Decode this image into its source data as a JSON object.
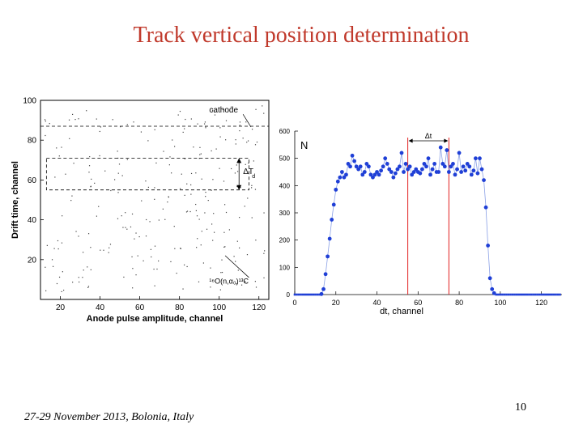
{
  "slide": {
    "title": "Track vertical position determination",
    "footer": "27-29 November 2013, Bolonia, Italy",
    "page_number": "10"
  },
  "colors": {
    "title": "#c0392b",
    "marker": "#1f3fd6",
    "connector": "#8aa0e6",
    "red_line": "#e02020"
  },
  "chart_data": [
    {
      "type": "heatmap",
      "xlabel": "Anode pulse amplitude, channel",
      "ylabel": "Drift time, channel",
      "xlim": [
        10,
        125
      ],
      "ylim": [
        0,
        100
      ],
      "xticks": [
        20,
        40,
        60,
        80,
        100,
        120
      ],
      "yticks": [
        20,
        40,
        60,
        80,
        100
      ],
      "annotations": {
        "cathode": "cathode",
        "delta_t": "ΔT",
        "delta_t_sub": "d",
        "reaction": "¹⁶O(n,α₀)¹³C"
      },
      "regions": [
        {
          "name": "left-band",
          "x_range": [
            14,
            32
          ],
          "y_range": [
            25,
            88
          ]
        },
        {
          "name": "right-band",
          "x_range": [
            90,
            104
          ],
          "y_range": [
            12,
            88
          ]
        },
        {
          "name": "top-bridge",
          "x_range": [
            26,
            96
          ],
          "y_range": [
            82,
            90
          ]
        }
      ],
      "reference_lines": {
        "cathode_y": 87,
        "box_y": [
          55,
          71
        ]
      }
    },
    {
      "type": "scatter",
      "xlabel": "dt, channel",
      "ylabel": "N",
      "xlim": [
        0,
        130
      ],
      "ylim": [
        0,
        600
      ],
      "xticks": [
        0,
        20,
        40,
        60,
        80,
        100,
        120
      ],
      "yticks": [
        0,
        100,
        200,
        300,
        400,
        500,
        600
      ],
      "delta_label": "Δt",
      "vertical_lines": [
        55,
        75
      ],
      "x": [
        0,
        1,
        2,
        3,
        4,
        5,
        6,
        7,
        8,
        9,
        10,
        11,
        12,
        13,
        14,
        15,
        16,
        17,
        18,
        19,
        20,
        21,
        22,
        23,
        24,
        25,
        26,
        27,
        28,
        29,
        30,
        31,
        32,
        33,
        34,
        35,
        36,
        37,
        38,
        39,
        40,
        41,
        42,
        43,
        44,
        45,
        46,
        47,
        48,
        49,
        50,
        51,
        52,
        53,
        54,
        55,
        56,
        57,
        58,
        59,
        60,
        61,
        62,
        63,
        64,
        65,
        66,
        67,
        68,
        69,
        70,
        71,
        72,
        73,
        74,
        75,
        76,
        77,
        78,
        79,
        80,
        81,
        82,
        83,
        84,
        85,
        86,
        87,
        88,
        89,
        90,
        91,
        92,
        93,
        94,
        95,
        96,
        97,
        98,
        99,
        100,
        101,
        102,
        103,
        104,
        105,
        106,
        107,
        108,
        109,
        110,
        111,
        112,
        113,
        114,
        115,
        116,
        117,
        118,
        119,
        120,
        121,
        122,
        123,
        124,
        125,
        126,
        127,
        128,
        129
      ],
      "values": [
        0,
        0,
        0,
        0,
        0,
        0,
        0,
        0,
        0,
        0,
        0,
        0,
        0,
        2,
        20,
        75,
        140,
        205,
        275,
        330,
        385,
        415,
        430,
        450,
        430,
        440,
        480,
        470,
        510,
        490,
        470,
        460,
        470,
        440,
        450,
        480,
        470,
        440,
        430,
        440,
        450,
        440,
        455,
        470,
        500,
        480,
        460,
        450,
        430,
        445,
        460,
        470,
        520,
        450,
        480,
        460,
        470,
        440,
        450,
        460,
        450,
        445,
        460,
        480,
        470,
        500,
        440,
        460,
        480,
        450,
        450,
        540,
        480,
        470,
        530,
        450,
        470,
        480,
        440,
        460,
        520,
        450,
        470,
        455,
        480,
        470,
        440,
        455,
        500,
        445,
        500,
        460,
        420,
        320,
        180,
        60,
        20,
        5,
        0,
        0,
        0,
        0,
        0,
        0,
        0,
        0,
        0,
        0,
        0,
        0,
        0,
        0,
        0,
        0,
        0,
        0,
        0,
        0,
        0,
        0,
        0,
        0,
        0,
        0,
        0,
        0,
        0,
        0,
        0,
        0
      ]
    }
  ]
}
